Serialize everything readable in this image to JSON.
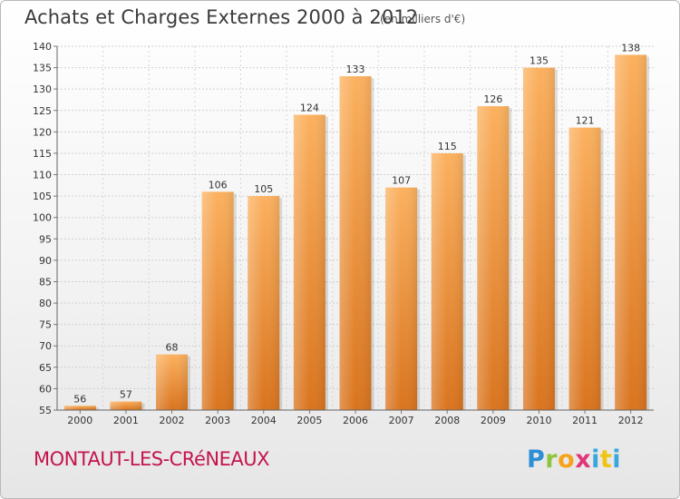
{
  "title": "Achats et Charges Externes 2000 à 2012",
  "unit_note": "(en milliers d'€)",
  "commune": "MONTAUT-LES-CRéNEAUX",
  "logo": {
    "letters": [
      "P",
      "r",
      "o",
      "x",
      "i",
      "t",
      "i"
    ]
  },
  "colors": {
    "bar_light": "#fbb15f",
    "bar_dark": "#d9741e",
    "title_red": "#c4154d"
  },
  "chart_data": {
    "type": "bar",
    "title": "Achats et Charges Externes 2000 à 2012",
    "subtitle": "(en milliers d'€)",
    "categories": [
      "2000",
      "2001",
      "2002",
      "2003",
      "2004",
      "2005",
      "2006",
      "2007",
      "2008",
      "2009",
      "2010",
      "2011",
      "2012"
    ],
    "values": [
      56,
      57,
      68,
      106,
      105,
      124,
      133,
      107,
      115,
      126,
      135,
      121,
      138
    ],
    "ylim": [
      55,
      140
    ],
    "yticks": [
      55,
      60,
      65,
      70,
      75,
      80,
      85,
      90,
      95,
      100,
      105,
      110,
      115,
      120,
      125,
      130,
      135,
      140
    ],
    "grid": true,
    "legend": "none",
    "xlabel": "",
    "ylabel": ""
  }
}
